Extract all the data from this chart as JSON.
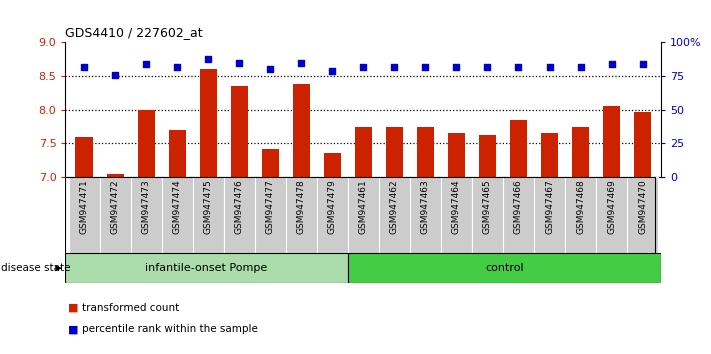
{
  "title": "GDS4410 / 227602_at",
  "samples": [
    "GSM947471",
    "GSM947472",
    "GSM947473",
    "GSM947474",
    "GSM947475",
    "GSM947476",
    "GSM947477",
    "GSM947478",
    "GSM947479",
    "GSM947461",
    "GSM947462",
    "GSM947463",
    "GSM947464",
    "GSM947465",
    "GSM947466",
    "GSM947467",
    "GSM947468",
    "GSM947469",
    "GSM947470"
  ],
  "red_values": [
    7.6,
    7.05,
    8.0,
    7.7,
    8.6,
    8.35,
    7.42,
    8.39,
    7.35,
    7.75,
    7.75,
    7.75,
    7.65,
    7.62,
    7.85,
    7.65,
    7.75,
    8.05,
    7.97
  ],
  "blue_values": [
    82,
    76,
    84,
    82,
    88,
    85,
    80,
    85,
    79,
    82,
    82,
    82,
    82,
    82,
    82,
    82,
    82,
    84,
    84
  ],
  "group1_label": "infantile-onset Pompe",
  "group2_label": "control",
  "group1_count": 9,
  "group2_count": 10,
  "ylim_left": [
    7,
    9
  ],
  "ylim_right": [
    0,
    100
  ],
  "yticks_left": [
    7,
    7.5,
    8,
    8.5,
    9
  ],
  "yticks_right": [
    0,
    25,
    50,
    75,
    100
  ],
  "ytick_labels_right": [
    "0",
    "25",
    "50",
    "75",
    "100%"
  ],
  "bar_color": "#cc2200",
  "dot_color": "#0000cc",
  "group1_bg": "#aaddaa",
  "group2_bg": "#44cc44",
  "xticklabel_bg": "#cccccc",
  "legend_bar_label": "transformed count",
  "legend_dot_label": "percentile rank within the sample",
  "disease_state_label": "disease state",
  "grid_lines": [
    7.5,
    8.0,
    8.5
  ]
}
